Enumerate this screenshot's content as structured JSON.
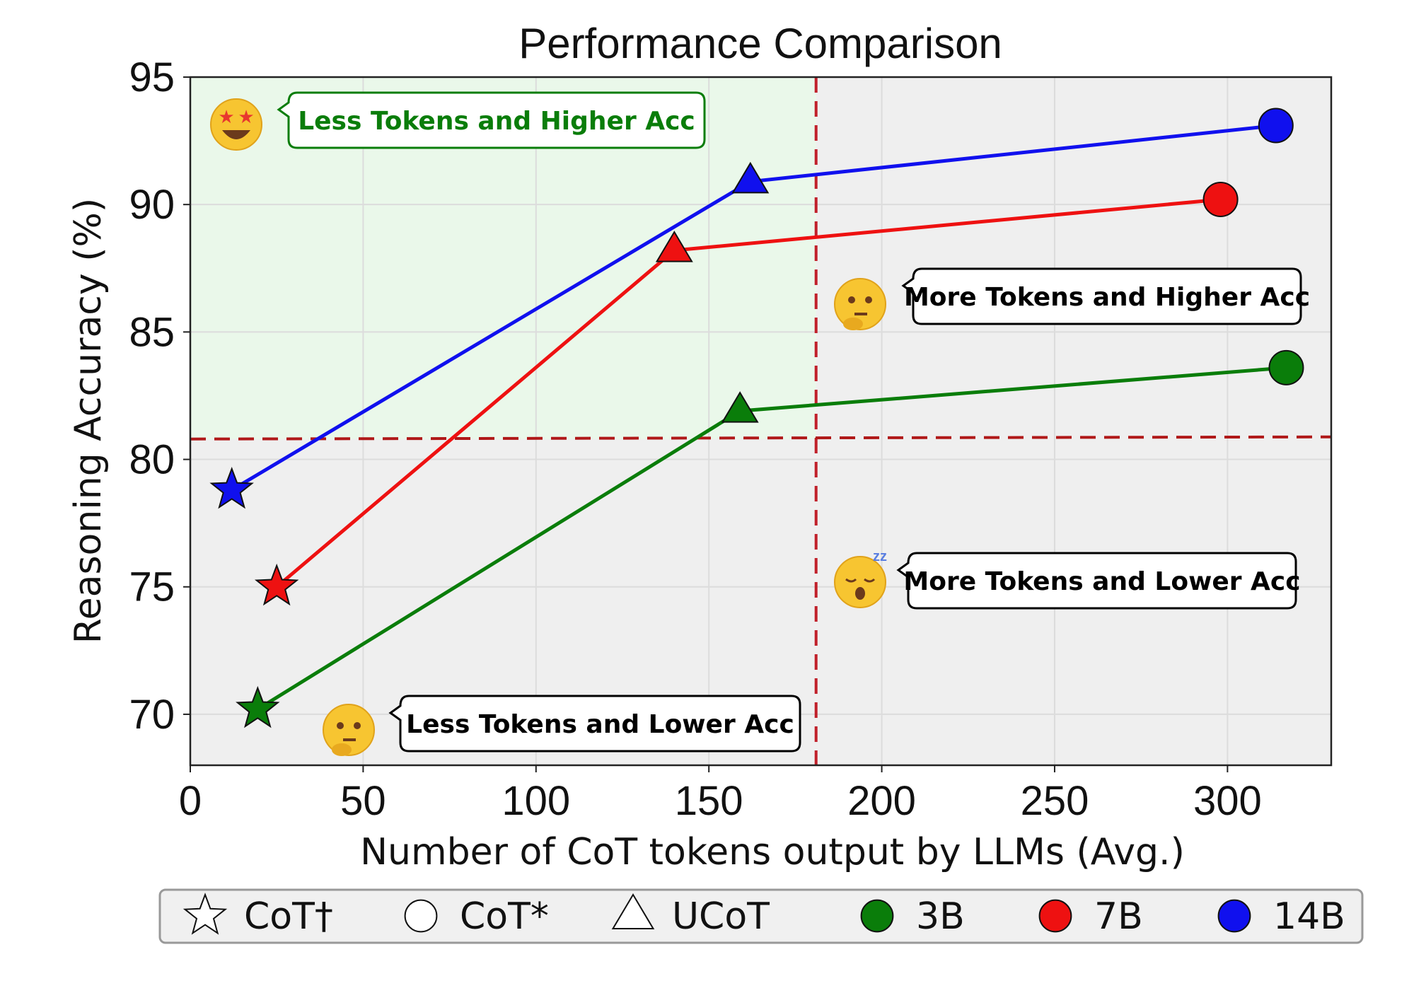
{
  "chart_data": {
    "type": "line",
    "title": "Performance Comparison",
    "xlabel": "Number of CoT tokens output by LLMs (Avg.)",
    "ylabel": "Reasoning Accuracy (%)",
    "xlim": [
      0,
      330
    ],
    "ylim": [
      68,
      95
    ],
    "xticks": [
      0,
      50,
      100,
      150,
      200,
      250,
      300
    ],
    "yticks": [
      70,
      75,
      80,
      85,
      90,
      95
    ],
    "grid": true,
    "thresholds": {
      "x": 181,
      "y": 80.8
    },
    "series": [
      {
        "name": "3B",
        "color": "#0a7d0a",
        "points": [
          {
            "method": "CoT†",
            "marker": "star",
            "x": 19.5,
            "y": 70.2
          },
          {
            "method": "UCoT",
            "marker": "triangle",
            "x": 159,
            "y": 81.9
          },
          {
            "method": "CoT*",
            "marker": "circle",
            "x": 317,
            "y": 83.6
          }
        ]
      },
      {
        "name": "7B",
        "color": "#ee1111",
        "points": [
          {
            "method": "CoT†",
            "marker": "star",
            "x": 25,
            "y": 75.0
          },
          {
            "method": "UCoT",
            "marker": "triangle",
            "x": 140,
            "y": 88.2
          },
          {
            "method": "CoT*",
            "marker": "circle",
            "x": 298,
            "y": 90.2
          }
        ]
      },
      {
        "name": "14B",
        "color": "#1010ee",
        "points": [
          {
            "method": "CoT†",
            "marker": "star",
            "x": 12,
            "y": 78.8
          },
          {
            "method": "UCoT",
            "marker": "triangle",
            "x": 162,
            "y": 90.9
          },
          {
            "method": "CoT*",
            "marker": "circle",
            "x": 314,
            "y": 93.1
          }
        ]
      }
    ],
    "annotations": [
      {
        "text": "Less Tokens and Higher Acc",
        "emoji": "star-struck",
        "color": "#0a7d0a"
      },
      {
        "text": "More Tokens and Higher Acc",
        "emoji": "thinking",
        "color": "#000000"
      },
      {
        "text": "More Tokens and Lower Acc",
        "emoji": "sleepy",
        "color": "#000000"
      },
      {
        "text": "Less Tokens and Lower Acc",
        "emoji": "thinking",
        "color": "#000000"
      }
    ],
    "legend": {
      "placement": "bottom",
      "markers": [
        {
          "label": "CoT†",
          "marker": "star"
        },
        {
          "label": "CoT*",
          "marker": "circle"
        },
        {
          "label": "UCoT",
          "marker": "triangle"
        }
      ],
      "colors": [
        {
          "label": "3B",
          "color": "#0a7d0a"
        },
        {
          "label": "7B",
          "color": "#ee1111"
        },
        {
          "label": "14B",
          "color": "#1010ee"
        }
      ]
    }
  }
}
